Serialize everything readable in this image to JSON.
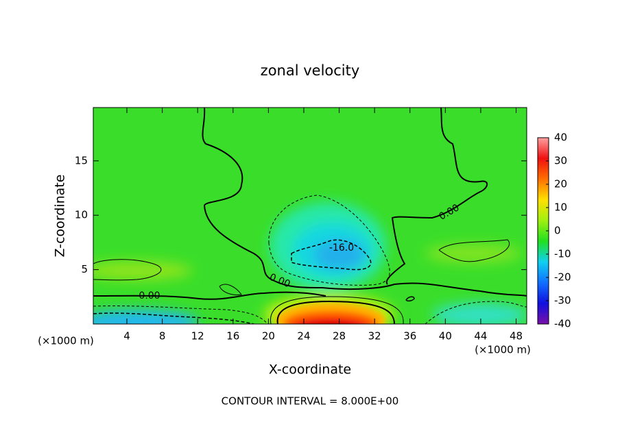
{
  "chart_data": {
    "type": "contour",
    "title": "zonal velocity",
    "xlabel": "X-coordinate",
    "ylabel": "Z-coordinate",
    "xunit": "(×1000 m)",
    "yunit": "(×1000 m)",
    "xlim": [
      0.2,
      49.2
    ],
    "xticks": [
      4,
      8,
      12,
      16,
      20,
      24,
      28,
      32,
      36,
      40,
      44,
      48
    ],
    "ylim": [
      0,
      19.9
    ],
    "yticks": [
      5,
      10,
      15
    ],
    "clim": [
      -40,
      40
    ],
    "cticks": [
      -40,
      -30,
      -20,
      -10,
      0,
      10,
      20,
      30,
      40
    ],
    "colormap": [
      "#7a10a8",
      "#1010e0",
      "#1070ff",
      "#10d0f0",
      "#20e020",
      "#a0f010",
      "#ffe000",
      "#ff7000",
      "#f01010",
      "#ffa0a0"
    ],
    "contour_labels": [
      "0.00",
      "0.00",
      "0.00",
      "-16.0"
    ],
    "footnote": "CONTOUR INTERVAL = 8.000E+00"
  }
}
